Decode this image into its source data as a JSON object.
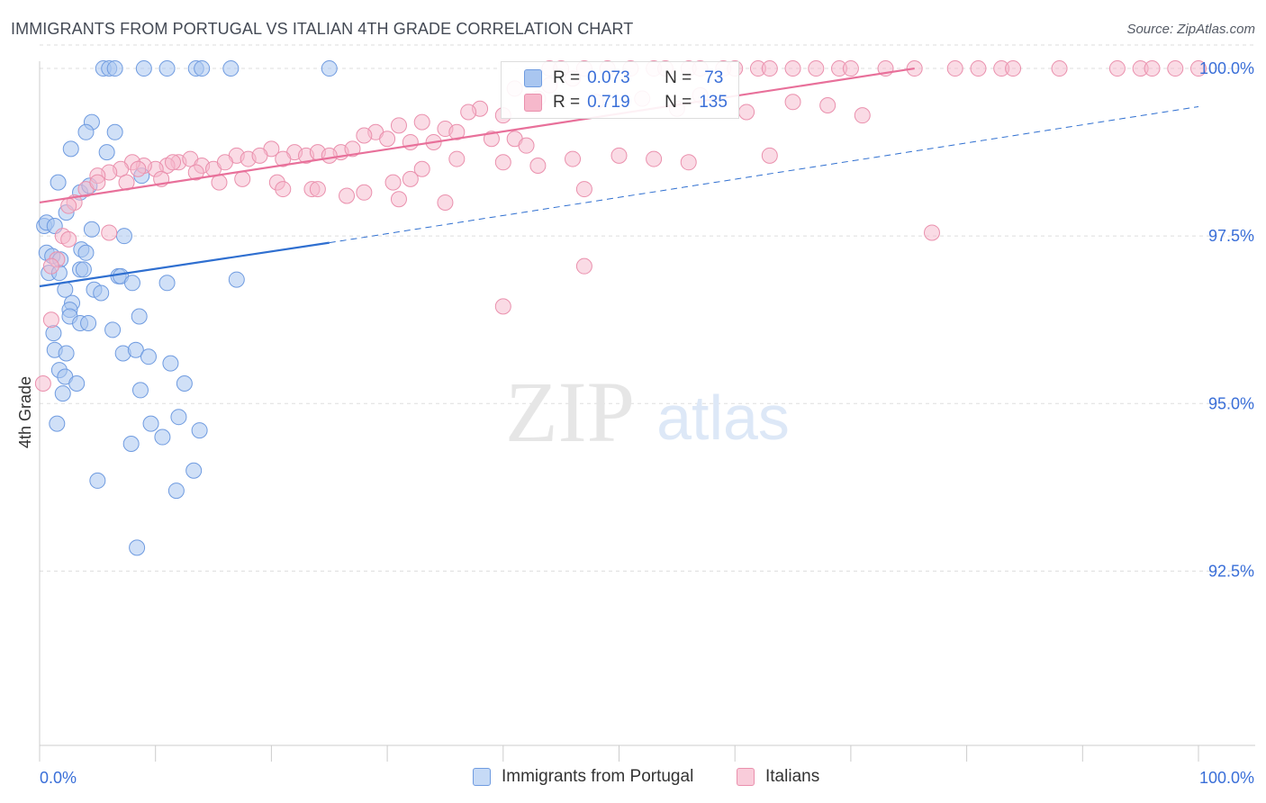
{
  "header": {
    "title": "IMMIGRANTS FROM PORTUGAL VS ITALIAN 4TH GRADE CORRELATION CHART",
    "source": "Source: ZipAtlas.com"
  },
  "watermark": {
    "zip": "ZIP",
    "atlas": "atlas"
  },
  "colors": {
    "blue_fill": "#a9c6f0",
    "blue_stroke": "#6f9be0",
    "blue_line": "#2f6fd0",
    "pink_fill": "#f6b8cb",
    "pink_stroke": "#ea90ad",
    "pink_line": "#e8709a",
    "axis_label": "#3a6fd8",
    "grid": "#dddddd"
  },
  "legend": {
    "r_key": "R =",
    "n_key": "N =",
    "rows": [
      {
        "swatch": "blue",
        "r": "0.073",
        "n": "73"
      },
      {
        "swatch": "pink",
        "r": "0.719",
        "n": "135"
      }
    ]
  },
  "bottom_legend": [
    {
      "swatch": "blue",
      "label": "Immigrants from Portugal"
    },
    {
      "swatch": "pink",
      "label": "Italians"
    }
  ],
  "chart_data": {
    "type": "scatter",
    "title": "IMMIGRANTS FROM PORTUGAL VS ITALIAN 4TH GRADE CORRELATION CHART",
    "xlabel": "",
    "ylabel": "4th Grade",
    "xlim": [
      0,
      100
    ],
    "ylim": [
      89.9,
      100.35
    ],
    "x_tick_labels": [
      "0.0%",
      "100.0%"
    ],
    "y_ticks": [
      92.5,
      95.0,
      97.5,
      100.0
    ],
    "y_tick_labels": [
      "92.5%",
      "95.0%",
      "97.5%",
      "100.0%"
    ],
    "grid": "horizontal dashed",
    "legend_position": "top-center",
    "series": [
      {
        "name": "Immigrants from Portugal",
        "color": "blue",
        "r": 0.073,
        "n": 73,
        "trend": {
          "x": [
            0,
            25
          ],
          "y": [
            96.75,
            97.4
          ]
        },
        "trend_extension": {
          "x": [
            25,
            100
          ],
          "y": [
            97.4,
            99.43
          ]
        },
        "points": [
          [
            5.5,
            100.0
          ],
          [
            6.0,
            100.0
          ],
          [
            6.5,
            100.0
          ],
          [
            9.0,
            100.0
          ],
          [
            11.0,
            100.0
          ],
          [
            13.5,
            100.0
          ],
          [
            14.0,
            100.0
          ],
          [
            16.5,
            100.0
          ],
          [
            25.0,
            100.0
          ],
          [
            4.5,
            99.2
          ],
          [
            4.0,
            99.05
          ],
          [
            6.5,
            99.05
          ],
          [
            2.7,
            98.8
          ],
          [
            5.8,
            98.75
          ],
          [
            1.6,
            98.3
          ],
          [
            8.8,
            98.4
          ],
          [
            3.5,
            98.15
          ],
          [
            4.3,
            98.25
          ],
          [
            2.3,
            97.85
          ],
          [
            0.4,
            97.65
          ],
          [
            0.6,
            97.7
          ],
          [
            1.3,
            97.65
          ],
          [
            4.5,
            97.6
          ],
          [
            7.3,
            97.5
          ],
          [
            0.6,
            97.25
          ],
          [
            1.1,
            97.2
          ],
          [
            1.8,
            97.15
          ],
          [
            3.6,
            97.3
          ],
          [
            4.0,
            97.25
          ],
          [
            0.8,
            96.95
          ],
          [
            1.7,
            96.95
          ],
          [
            3.5,
            97.0
          ],
          [
            3.8,
            97.0
          ],
          [
            6.8,
            96.9
          ],
          [
            7.0,
            96.9
          ],
          [
            8.0,
            96.8
          ],
          [
            11.0,
            96.8
          ],
          [
            17.0,
            96.85
          ],
          [
            2.2,
            96.7
          ],
          [
            4.7,
            96.7
          ],
          [
            5.3,
            96.65
          ],
          [
            2.8,
            96.5
          ],
          [
            2.6,
            96.4
          ],
          [
            2.6,
            96.3
          ],
          [
            3.5,
            96.2
          ],
          [
            4.2,
            96.2
          ],
          [
            8.6,
            96.3
          ],
          [
            6.3,
            96.1
          ],
          [
            1.2,
            96.05
          ],
          [
            1.3,
            95.8
          ],
          [
            2.3,
            95.75
          ],
          [
            7.2,
            95.75
          ],
          [
            8.3,
            95.8
          ],
          [
            9.4,
            95.7
          ],
          [
            11.3,
            95.6
          ],
          [
            1.7,
            95.5
          ],
          [
            2.2,
            95.4
          ],
          [
            3.2,
            95.3
          ],
          [
            12.5,
            95.3
          ],
          [
            2.0,
            95.15
          ],
          [
            8.7,
            95.2
          ],
          [
            12.0,
            94.8
          ],
          [
            1.5,
            94.7
          ],
          [
            9.6,
            94.7
          ],
          [
            10.6,
            94.5
          ],
          [
            13.8,
            94.6
          ],
          [
            7.9,
            94.4
          ],
          [
            13.3,
            94.0
          ],
          [
            5.0,
            93.85
          ],
          [
            11.8,
            93.7
          ],
          [
            8.4,
            92.85
          ]
        ]
      },
      {
        "name": "Italians",
        "color": "pink",
        "r": 0.719,
        "n": 135,
        "trend": {
          "x": [
            0,
            75.5
          ],
          "y": [
            98.0,
            100.0
          ]
        },
        "points": [
          [
            44,
            100.0
          ],
          [
            45,
            100.0
          ],
          [
            47,
            100.0
          ],
          [
            49,
            100.0
          ],
          [
            51,
            100.0
          ],
          [
            53,
            100.0
          ],
          [
            54,
            100.0
          ],
          [
            56,
            100.0
          ],
          [
            57,
            100.0
          ],
          [
            59,
            100.0
          ],
          [
            60,
            100.0
          ],
          [
            62,
            100.0
          ],
          [
            63,
            100.0
          ],
          [
            65,
            100.0
          ],
          [
            67,
            100.0
          ],
          [
            69,
            100.0
          ],
          [
            70,
            100.0
          ],
          [
            73,
            100.0
          ],
          [
            75.5,
            100.0
          ],
          [
            79,
            100.0
          ],
          [
            81,
            100.0
          ],
          [
            83,
            100.0
          ],
          [
            84,
            100.0
          ],
          [
            88,
            100.0
          ],
          [
            93,
            100.0
          ],
          [
            95,
            100.0
          ],
          [
            96,
            100.0
          ],
          [
            98,
            100.0
          ],
          [
            100,
            100.0
          ],
          [
            44,
            99.75
          ],
          [
            46,
            99.85
          ],
          [
            41,
            99.7
          ],
          [
            43,
            99.55
          ],
          [
            38,
            99.4
          ],
          [
            37,
            99.35
          ],
          [
            40,
            99.3
          ],
          [
            48,
            99.5
          ],
          [
            52,
            99.55
          ],
          [
            55,
            99.4
          ],
          [
            57,
            99.6
          ],
          [
            61,
            99.35
          ],
          [
            65,
            99.5
          ],
          [
            68,
            99.45
          ],
          [
            71,
            99.3
          ],
          [
            31,
            99.15
          ],
          [
            33,
            99.2
          ],
          [
            29,
            99.05
          ],
          [
            35,
            99.1
          ],
          [
            36,
            99.05
          ],
          [
            28,
            99.0
          ],
          [
            30,
            98.95
          ],
          [
            32,
            98.9
          ],
          [
            34,
            98.9
          ],
          [
            39,
            98.95
          ],
          [
            41,
            98.95
          ],
          [
            42,
            98.85
          ],
          [
            20,
            98.8
          ],
          [
            22,
            98.75
          ],
          [
            23,
            98.7
          ],
          [
            24,
            98.75
          ],
          [
            26,
            98.75
          ],
          [
            27,
            98.8
          ],
          [
            17,
            98.7
          ],
          [
            18,
            98.65
          ],
          [
            19,
            98.7
          ],
          [
            21,
            98.65
          ],
          [
            25,
            98.7
          ],
          [
            12,
            98.6
          ],
          [
            13,
            98.65
          ],
          [
            14,
            98.55
          ],
          [
            15,
            98.5
          ],
          [
            16,
            98.6
          ],
          [
            11,
            98.55
          ],
          [
            10,
            98.5
          ],
          [
            9,
            98.55
          ],
          [
            8,
            98.6
          ],
          [
            7,
            98.5
          ],
          [
            6,
            98.45
          ],
          [
            5,
            98.4
          ],
          [
            7.5,
            98.3
          ],
          [
            8.5,
            98.5
          ],
          [
            10.5,
            98.35
          ],
          [
            11.5,
            98.6
          ],
          [
            13.5,
            98.45
          ],
          [
            15.5,
            98.3
          ],
          [
            17.5,
            98.35
          ],
          [
            20.5,
            98.3
          ],
          [
            23.5,
            98.2
          ],
          [
            26.5,
            98.1
          ],
          [
            28,
            98.15
          ],
          [
            30.5,
            98.3
          ],
          [
            33,
            98.5
          ],
          [
            36,
            98.65
          ],
          [
            40,
            98.6
          ],
          [
            43,
            98.55
          ],
          [
            46,
            98.65
          ],
          [
            50,
            98.7
          ],
          [
            53,
            98.65
          ],
          [
            56,
            98.6
          ],
          [
            3,
            98.0
          ],
          [
            4,
            98.2
          ],
          [
            5,
            98.3
          ],
          [
            2.5,
            97.95
          ],
          [
            24,
            98.2
          ],
          [
            21,
            98.2
          ],
          [
            32,
            98.35
          ],
          [
            35,
            98.0
          ],
          [
            31,
            98.05
          ],
          [
            47,
            98.2
          ],
          [
            63,
            98.7
          ],
          [
            2.0,
            97.5
          ],
          [
            2.5,
            97.45
          ],
          [
            6,
            97.55
          ],
          [
            1.5,
            97.15
          ],
          [
            1.0,
            97.05
          ],
          [
            77,
            97.55
          ],
          [
            47,
            97.05
          ],
          [
            40,
            96.45
          ],
          [
            1.0,
            96.25
          ],
          [
            0.3,
            95.3
          ]
        ]
      }
    ]
  }
}
